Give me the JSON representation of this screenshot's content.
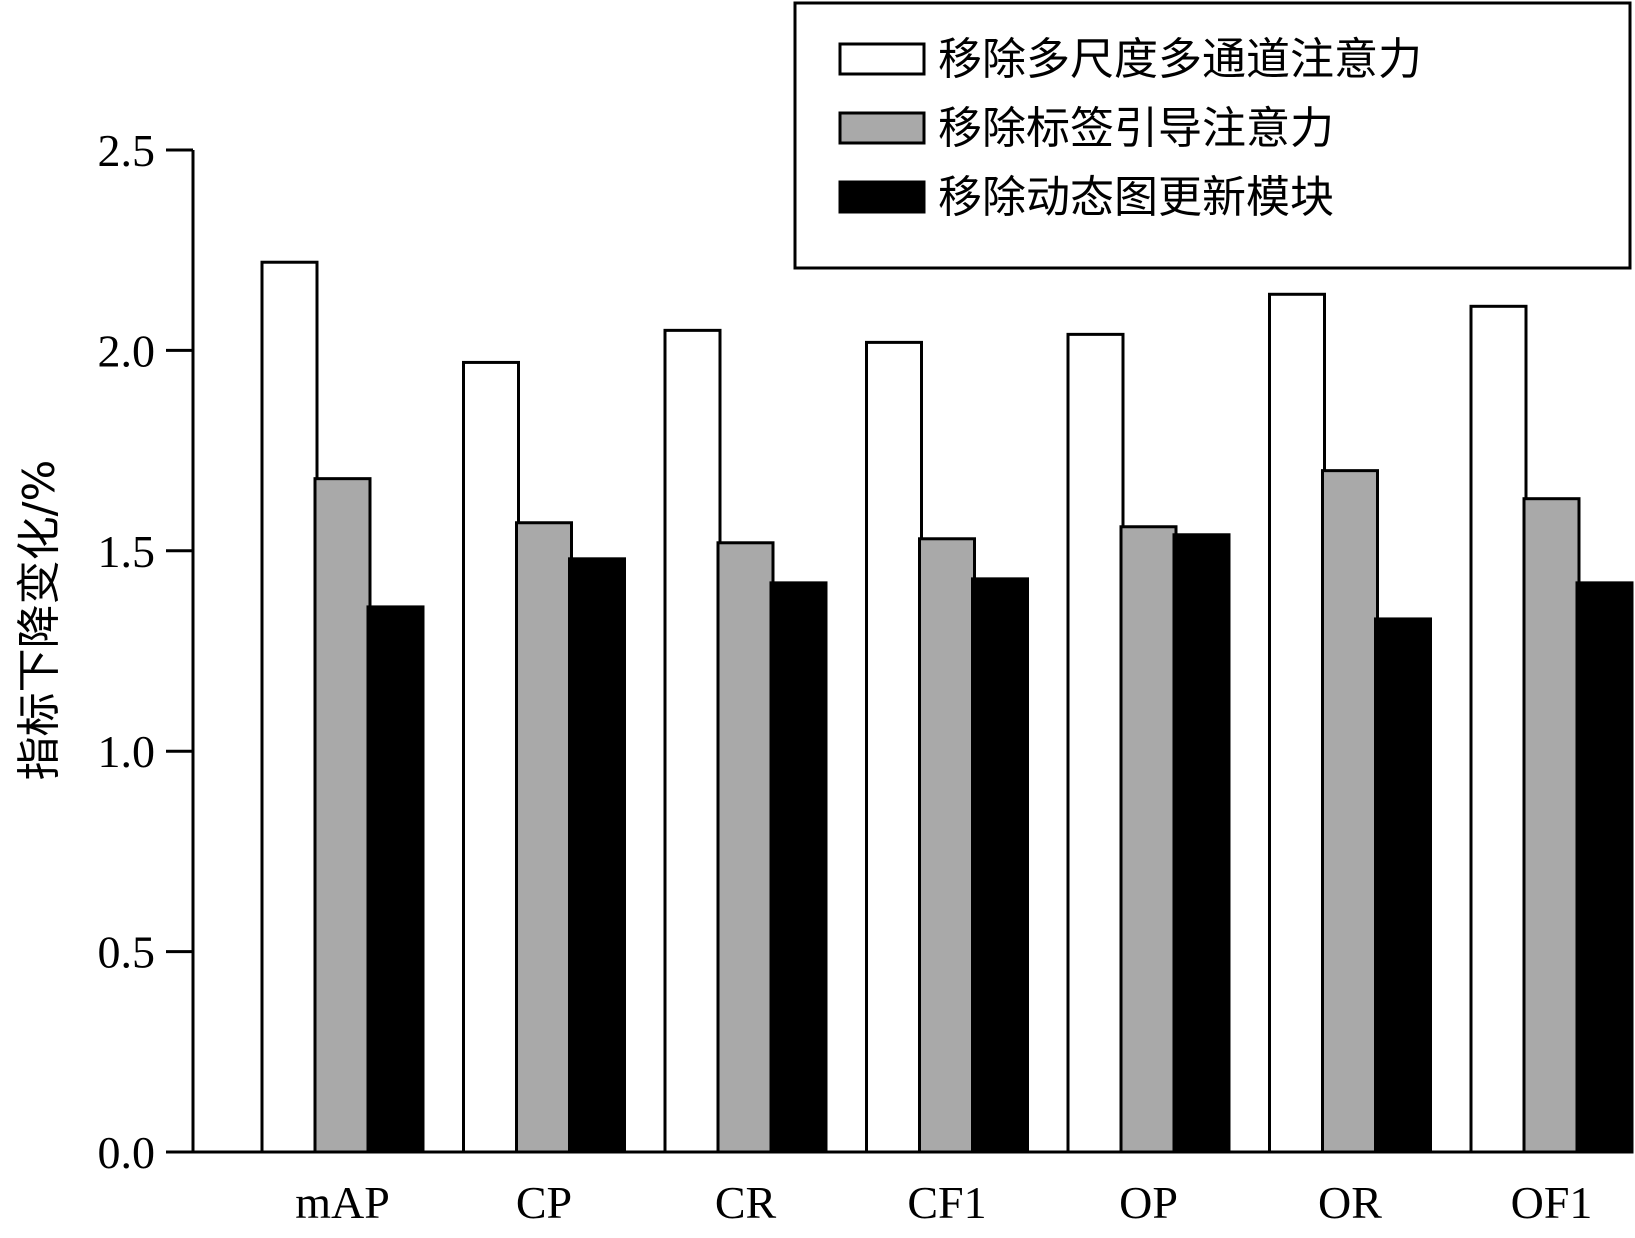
{
  "chart_data": {
    "type": "bar",
    "title": "",
    "xlabel": "",
    "ylabel": "指标下降变化/%",
    "ylim": [
      0,
      2.5
    ],
    "yticks": [
      "0.0",
      "0.5",
      "1.0",
      "1.5",
      "2.0",
      "2.5"
    ],
    "categories": [
      "mAP",
      "CP",
      "CR",
      "CF1",
      "OP",
      "OR",
      "OF1"
    ],
    "series": [
      {
        "name": "移除多尺度多通道注意力",
        "color": "#ffffff",
        "values": [
          2.22,
          1.97,
          2.05,
          2.02,
          2.04,
          2.14,
          2.11
        ]
      },
      {
        "name": "移除标签引导注意力",
        "color": "#a9a9a9",
        "values": [
          1.68,
          1.57,
          1.52,
          1.53,
          1.56,
          1.7,
          1.63
        ]
      },
      {
        "name": "移除动态图更新模块",
        "color": "#000000",
        "values": [
          1.36,
          1.48,
          1.42,
          1.43,
          1.54,
          1.33,
          1.42
        ]
      }
    ],
    "grid": false,
    "legend_position": "top-right"
  }
}
